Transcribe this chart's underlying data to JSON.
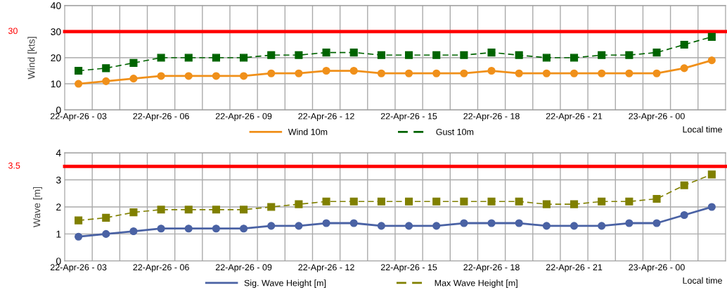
{
  "chart_data": [
    {
      "type": "line",
      "ylabel": "Wind [kts]",
      "categories": [
        "22-Apr-26 - 03",
        null,
        null,
        "22-Apr-26 - 06",
        null,
        null,
        "22-Apr-26 - 09",
        null,
        null,
        "22-Apr-26 - 12",
        null,
        null,
        "22-Apr-26 - 15",
        null,
        null,
        "22-Apr-26 - 18",
        null,
        null,
        "22-Apr-26 - 21",
        null,
        null,
        "23-Apr-26 - 00",
        null,
        null
      ],
      "series": [
        {
          "name": "Wind 10m",
          "color": "#f0901a",
          "marker": "circle",
          "line_style": "solid",
          "values": [
            10,
            11,
            12,
            13,
            13,
            13,
            13,
            14,
            14,
            15,
            15,
            14,
            14,
            14,
            14,
            15,
            14,
            14,
            14,
            14,
            14,
            14,
            16,
            19
          ]
        },
        {
          "name": "Gust 10m",
          "color": "#006400",
          "marker": "square",
          "line_style": "dashed",
          "values": [
            15,
            16,
            18,
            20,
            20,
            20,
            20,
            21,
            21,
            22,
            22,
            21,
            21,
            21,
            21,
            22,
            21,
            20,
            20,
            21,
            21,
            22,
            25,
            28
          ]
        }
      ],
      "ylim": [
        0,
        40
      ],
      "yticks": [
        0,
        10,
        20,
        30,
        40
      ],
      "grid": true,
      "legend": "bottom",
      "ref_lines": [
        {
          "axis": "y",
          "value": 30,
          "label": "30",
          "color": "#ff0000"
        }
      ],
      "annotations": [
        "Local time"
      ]
    },
    {
      "type": "line",
      "ylabel": "Wave [m]",
      "categories": [
        "22-Apr-26 - 03",
        null,
        null,
        "22-Apr-26 - 06",
        null,
        null,
        "22-Apr-26 - 09",
        null,
        null,
        "22-Apr-26 - 12",
        null,
        null,
        "22-Apr-26 - 15",
        null,
        null,
        "22-Apr-26 - 18",
        null,
        null,
        "22-Apr-26 - 21",
        null,
        null,
        "23-Apr-26 - 00",
        null,
        null
      ],
      "series": [
        {
          "name": "Sig. Wave Height [m]",
          "color": "#4a62a4",
          "marker": "circle",
          "line_style": "solid",
          "values": [
            0.9,
            1.0,
            1.1,
            1.2,
            1.2,
            1.2,
            1.2,
            1.3,
            1.3,
            1.4,
            1.4,
            1.3,
            1.3,
            1.3,
            1.4,
            1.4,
            1.4,
            1.3,
            1.3,
            1.3,
            1.4,
            1.4,
            1.7,
            2.0
          ]
        },
        {
          "name": "Max Wave Height [m]",
          "color": "#808000",
          "marker": "square",
          "line_style": "dashed",
          "values": [
            1.5,
            1.6,
            1.8,
            1.9,
            1.9,
            1.9,
            1.9,
            2.0,
            2.1,
            2.2,
            2.2,
            2.2,
            2.2,
            2.2,
            2.2,
            2.2,
            2.2,
            2.1,
            2.1,
            2.2,
            2.2,
            2.3,
            2.8,
            3.2
          ]
        }
      ],
      "ylim": [
        0,
        4
      ],
      "yticks": [
        0,
        1,
        2,
        3,
        4
      ],
      "grid": true,
      "legend": "bottom",
      "ref_lines": [
        {
          "axis": "y",
          "value": 3.5,
          "label": "3.5",
          "color": "#ff0000"
        }
      ],
      "annotations": [
        "Local time"
      ]
    }
  ]
}
